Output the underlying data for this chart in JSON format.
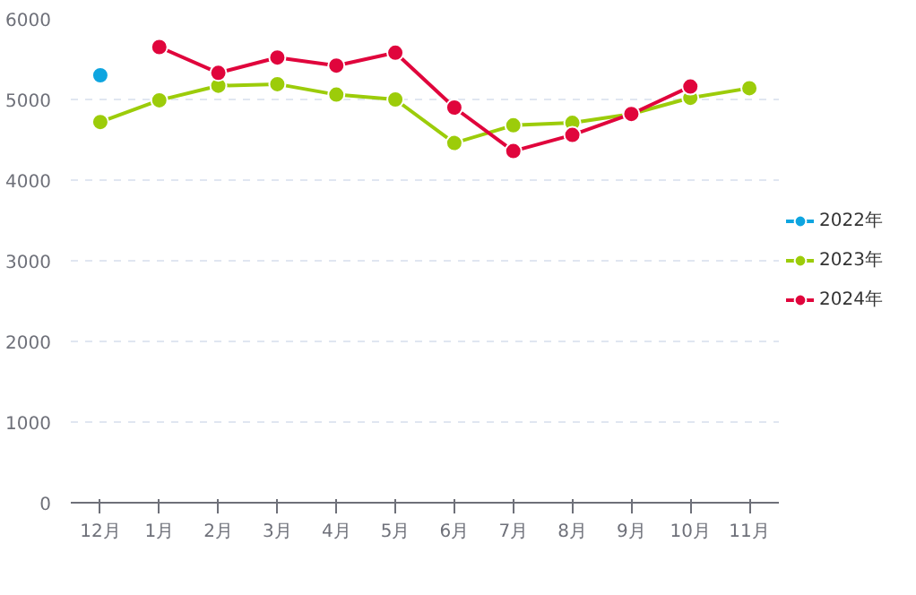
{
  "chart_data": {
    "type": "line",
    "categories": [
      "12月",
      "1月",
      "2月",
      "3月",
      "4月",
      "5月",
      "6月",
      "7月",
      "8月",
      "9月",
      "10月",
      "11月"
    ],
    "series": [
      {
        "name": "2022年",
        "color": "#0ea5e0",
        "values": [
          5300,
          null,
          null,
          null,
          null,
          null,
          null,
          null,
          null,
          null,
          null,
          null
        ]
      },
      {
        "name": "2023年",
        "color": "#9ccc0a",
        "values": [
          4720,
          4990,
          5170,
          5190,
          5060,
          5000,
          4460,
          4680,
          4710,
          4820,
          5020,
          5140
        ]
      },
      {
        "name": "2024年",
        "color": "#e0053c",
        "values": [
          null,
          5650,
          5330,
          5520,
          5420,
          5580,
          4900,
          4360,
          4560,
          4820,
          5160,
          null
        ]
      }
    ],
    "ylim": [
      0,
      6000
    ],
    "yticks": [
      0,
      1000,
      2000,
      3000,
      4000,
      5000,
      6000
    ],
    "grid": "y",
    "legend": "right",
    "marker": "circle",
    "line_style": "solid"
  }
}
